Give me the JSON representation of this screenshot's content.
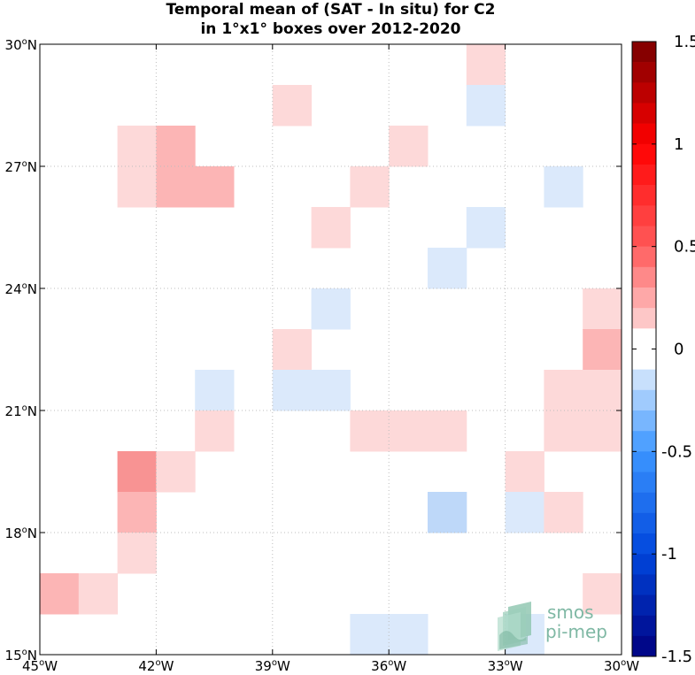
{
  "chart_data": {
    "type": "heatmap",
    "title_lines": [
      "Temporal mean of (SAT - In situ) for C2",
      "in 1°x1° boxes over 2012-2020"
    ],
    "x_ticks": [
      "45°W",
      "42°W",
      "39°W",
      "36°W",
      "33°W",
      "30°W"
    ],
    "y_ticks": [
      "30°N",
      "27°N",
      "24°N",
      "21°N",
      "18°N",
      "15°N"
    ],
    "x_range": [
      -45,
      -30
    ],
    "y_range": [
      15,
      30
    ],
    "grid": true,
    "colorbar": {
      "range": [
        -1.5,
        1.5
      ],
      "labels": [
        "1.5",
        "1",
        "0.5",
        "0",
        "-0.5",
        "-1",
        "-1.5"
      ]
    },
    "cells": [
      {
        "lon": -34,
        "lat": 29,
        "value": 0.1
      },
      {
        "lon": -34,
        "lat": 28,
        "value": -0.1
      },
      {
        "lon": -39,
        "lat": 28,
        "value": 0.1
      },
      {
        "lon": -43,
        "lat": 27,
        "value": 0.1
      },
      {
        "lon": -42,
        "lat": 27,
        "value": 0.3
      },
      {
        "lon": -36,
        "lat": 27,
        "value": 0.1
      },
      {
        "lon": -43,
        "lat": 26,
        "value": 0.1
      },
      {
        "lon": -42,
        "lat": 26,
        "value": 0.25
      },
      {
        "lon": -41,
        "lat": 26,
        "value": 0.25
      },
      {
        "lon": -37,
        "lat": 26,
        "value": 0.1
      },
      {
        "lon": -32,
        "lat": 26,
        "value": -0.1
      },
      {
        "lon": -38,
        "lat": 25,
        "value": 0.1
      },
      {
        "lon": -34,
        "lat": 25,
        "value": -0.1
      },
      {
        "lon": -35,
        "lat": 24,
        "value": -0.1
      },
      {
        "lon": -38,
        "lat": 23,
        "value": -0.1
      },
      {
        "lon": -31,
        "lat": 23,
        "value": 0.1
      },
      {
        "lon": -39,
        "lat": 22,
        "value": 0.1
      },
      {
        "lon": -31,
        "lat": 22,
        "value": 0.25
      },
      {
        "lon": -41,
        "lat": 21,
        "value": -0.1
      },
      {
        "lon": -39,
        "lat": 21,
        "value": -0.1
      },
      {
        "lon": -38,
        "lat": 21,
        "value": -0.1
      },
      {
        "lon": -32,
        "lat": 21,
        "value": 0.1
      },
      {
        "lon": -31,
        "lat": 21,
        "value": 0.1
      },
      {
        "lon": -41,
        "lat": 20,
        "value": 0.1
      },
      {
        "lon": -37,
        "lat": 20,
        "value": 0.1
      },
      {
        "lon": -36,
        "lat": 20,
        "value": 0.1
      },
      {
        "lon": -35,
        "lat": 20,
        "value": 0.1
      },
      {
        "lon": -32,
        "lat": 20,
        "value": 0.1
      },
      {
        "lon": -31,
        "lat": 20,
        "value": 0.1
      },
      {
        "lon": -43,
        "lat": 19,
        "value": 0.4
      },
      {
        "lon": -42,
        "lat": 19,
        "value": 0.1
      },
      {
        "lon": -33,
        "lat": 19,
        "value": 0.1
      },
      {
        "lon": -43,
        "lat": 18,
        "value": 0.3
      },
      {
        "lon": -35,
        "lat": 18,
        "value": -0.2
      },
      {
        "lon": -33,
        "lat": 18,
        "value": -0.1
      },
      {
        "lon": -32,
        "lat": 18,
        "value": 0.1
      },
      {
        "lon": -43,
        "lat": 17,
        "value": 0.1
      },
      {
        "lon": -45,
        "lat": 16,
        "value": 0.25
      },
      {
        "lon": -44,
        "lat": 16,
        "value": 0.1
      },
      {
        "lon": -31,
        "lat": 16,
        "value": 0.1
      },
      {
        "lon": -37,
        "lat": 15,
        "value": -0.1
      },
      {
        "lon": -36,
        "lat": 15,
        "value": -0.1
      },
      {
        "lon": -33,
        "lat": 15,
        "value": -0.1
      }
    ],
    "colors": {
      "pos_light": "#fdd9d9",
      "pos_mid": "#fcb5b5",
      "pos_strong": "#f89393",
      "neg_light": "#dbe9fb",
      "neg_mid": "#bed8f9"
    }
  },
  "logo": {
    "line1": "smos",
    "line2": "pi-mep"
  }
}
